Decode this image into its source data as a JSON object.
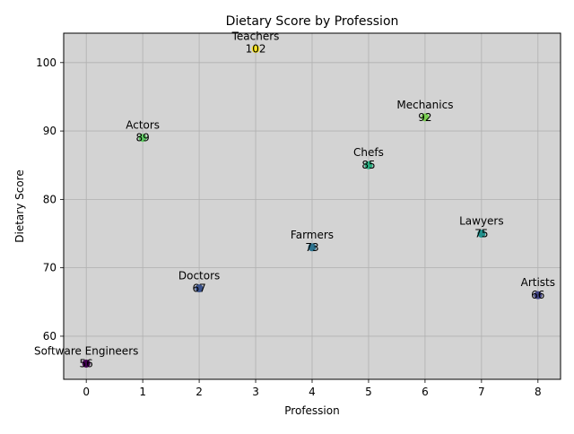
{
  "chart_data": {
    "type": "scatter",
    "title": "Dietary Score by Profession",
    "xlabel": "Profession",
    "ylabel": "Dietary Score",
    "xlim": [
      -0.4,
      8.4
    ],
    "ylim": [
      53.7,
      104.3
    ],
    "xticks": [
      "0",
      "1",
      "2",
      "3",
      "4",
      "5",
      "6",
      "7",
      "8"
    ],
    "yticks": [
      "60",
      "70",
      "80",
      "90",
      "100"
    ],
    "grid": true,
    "background": "#d3d3d3",
    "colormap": "viridis",
    "points": [
      {
        "x": 0,
        "y": 56,
        "label": "Software Engineers",
        "value_label": "56",
        "color": "#440154"
      },
      {
        "x": 1,
        "y": 89,
        "label": "Actors",
        "value_label": "89",
        "color": "#5ec962"
      },
      {
        "x": 2,
        "y": 67,
        "label": "Doctors",
        "value_label": "67",
        "color": "#3b528b"
      },
      {
        "x": 3,
        "y": 102,
        "label": "Teachers",
        "value_label": "102",
        "color": "#fde725"
      },
      {
        "x": 4,
        "y": 73,
        "label": "Farmers",
        "value_label": "73",
        "color": "#2c728e"
      },
      {
        "x": 5,
        "y": 85,
        "label": "Chefs",
        "value_label": "85",
        "color": "#28ae80"
      },
      {
        "x": 6,
        "y": 92,
        "label": "Mechanics",
        "value_label": "92",
        "color": "#7ad151"
      },
      {
        "x": 7,
        "y": 75,
        "label": "Lawyers",
        "value_label": "75",
        "color": "#21918c"
      },
      {
        "x": 8,
        "y": 66,
        "label": "Artists",
        "value_label": "66",
        "color": "#414487"
      }
    ]
  }
}
